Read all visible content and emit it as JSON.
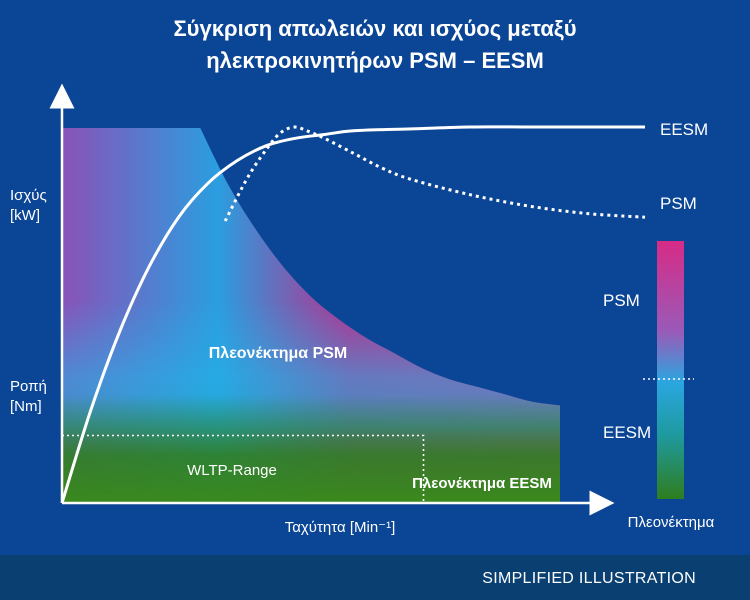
{
  "chart_data": {
    "type": "line",
    "title_lines": [
      "Σύγκριση απωλειών και ισχύος μεταξύ",
      "ηλεκτροκινητήρων PSM – EESM"
    ],
    "ylabel_top_lines": [
      "Ισχύς",
      "[kW]"
    ],
    "ylabel_bottom_lines": [
      "Ροπή",
      "[Nm]"
    ],
    "xlabel": "Ταχύτητα [Min⁻¹]",
    "x_relative_range": [
      0,
      1
    ],
    "y_relative_range": [
      0,
      1
    ],
    "series": [
      {
        "name": "EESM",
        "line_style": "solid",
        "color": "#ffffff",
        "x": [
          0,
          0.05,
          0.1,
          0.15,
          0.2,
          0.25,
          0.3,
          0.35,
          0.4,
          0.45,
          0.5,
          0.6,
          0.7,
          0.8,
          0.9,
          1.0
        ],
        "y": [
          0,
          0.25,
          0.46,
          0.63,
          0.76,
          0.85,
          0.91,
          0.95,
          0.97,
          0.98,
          0.99,
          0.995,
          1.0,
          1.0,
          1.0,
          1.0
        ]
      },
      {
        "name": "PSM",
        "line_style": "dashed",
        "color": "#ffffff",
        "x": [
          0.28,
          0.32,
          0.36,
          0.38,
          0.4,
          0.42,
          0.45,
          0.5,
          0.55,
          0.6,
          0.7,
          0.8,
          0.9,
          1.0
        ],
        "y": [
          0.75,
          0.87,
          0.96,
          0.99,
          1.0,
          0.99,
          0.97,
          0.93,
          0.89,
          0.86,
          0.82,
          0.79,
          0.77,
          0.76
        ]
      }
    ],
    "torque_envelope": {
      "x": [
        0,
        0.25,
        0.3,
        0.35,
        0.4,
        0.45,
        0.5,
        0.55,
        0.6,
        0.65,
        0.7,
        0.75,
        0.8,
        0.85,
        0.9
      ],
      "y": [
        1.0,
        1.0,
        0.85,
        0.73,
        0.63,
        0.55,
        0.49,
        0.44,
        0.4,
        0.36,
        0.33,
        0.31,
        0.29,
        0.27,
        0.26
      ]
    },
    "wltp_range": {
      "x_max": 0.62,
      "y_max": 0.18
    },
    "region_labels": {
      "psm_advantage": "Πλεονέκτημα PSM",
      "eesm_advantage": "Πλεονέκτημα EESM",
      "wltp": "WLTP-Range"
    },
    "colorbar": {
      "top_label": "PSM",
      "bottom_label": "EESM",
      "caption": "Πλεονέκτημα",
      "colors": {
        "psm": "#d62b86",
        "mid": "#2aa6e0",
        "eesm": "#2f7d1e"
      }
    }
  },
  "footer": {
    "text": "SIMPLIFIED ILLUSTRATION"
  }
}
